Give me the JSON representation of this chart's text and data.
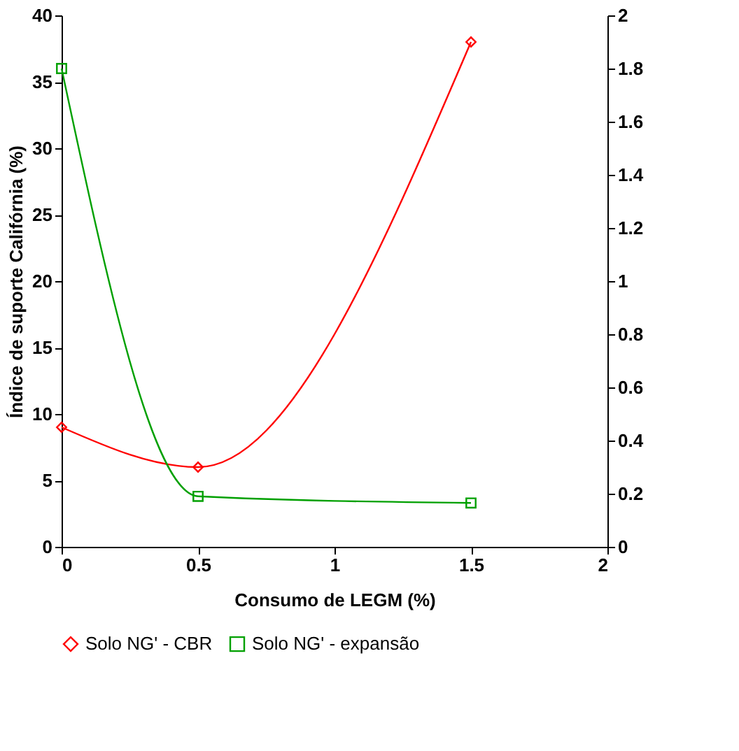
{
  "chart_data": {
    "type": "line",
    "xlabel": "Consumo de LEGM (%)",
    "ylabel": "Índice de suporte Califórnia (%)",
    "x": [
      0,
      0.5,
      1.5
    ],
    "series": [
      {
        "name": "Solo NG' - CBR",
        "color": "#ff0000",
        "marker": "diamond",
        "values": [
          9,
          6,
          38
        ]
      },
      {
        "name": "Solo NG' - expansão",
        "color": "#00a000",
        "marker": "square",
        "axis": "y2",
        "values": [
          1.8,
          0.19,
          0.165
        ]
      }
    ],
    "xlim": [
      0,
      2
    ],
    "xticks": [
      0,
      0.5,
      1,
      1.5,
      2
    ],
    "ylim": [
      0,
      40
    ],
    "yticks": [
      0,
      5,
      10,
      15,
      20,
      25,
      30,
      35,
      40
    ],
    "y2lim": [
      0,
      2
    ],
    "y2ticks": [
      0,
      0.2,
      0.4,
      0.6,
      0.8,
      1,
      1.2,
      1.4,
      1.6,
      1.8,
      2
    ],
    "grid": false,
    "legend": "bottom",
    "line_style": "solid"
  }
}
